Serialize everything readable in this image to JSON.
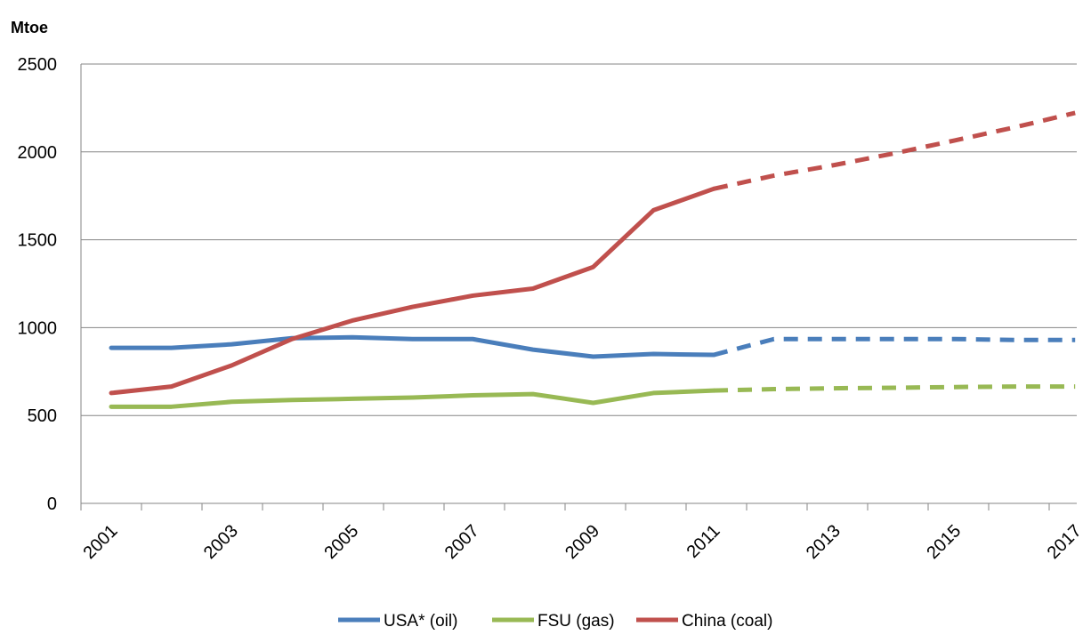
{
  "chart_data": {
    "type": "line",
    "ylabel": "Mtoe",
    "ylim": [
      0,
      2500
    ],
    "yticks": [
      "0",
      "500",
      "1000",
      "1500",
      "2000",
      "2500"
    ],
    "xticks": [
      "2001",
      "2003",
      "2005",
      "2007",
      "2009",
      "2011",
      "2013",
      "2015",
      "2017"
    ],
    "x": [
      2001,
      2002,
      2003,
      2004,
      2005,
      2006,
      2007,
      2008,
      2009,
      2010,
      2011,
      2012,
      2013,
      2014,
      2015,
      2016,
      2017
    ],
    "series": [
      {
        "name": "USA* (oil)",
        "color": "#4a7ebb",
        "values": [
          885,
          885,
          905,
          940,
          945,
          935,
          935,
          875,
          835,
          850,
          845,
          935,
          935,
          935,
          935,
          930,
          930
        ],
        "dashed_from_index": 10
      },
      {
        "name": "FSU (gas)",
        "color": "#98b954",
        "values": [
          550,
          550,
          578,
          588,
          595,
          602,
          615,
          622,
          572,
          628,
          642,
          650,
          655,
          658,
          662,
          665,
          665
        ],
        "dashed_from_index": 10
      },
      {
        "name": "China (coal)",
        "color": "#c0504d",
        "values": [
          628,
          665,
          785,
          935,
          1040,
          1118,
          1182,
          1222,
          1345,
          1668,
          1790,
          1865,
          1925,
          1992,
          2065,
          2140,
          2222
        ],
        "dashed_from_index": 10
      }
    ],
    "grid": "horizontal",
    "legend": "bottom-center"
  }
}
